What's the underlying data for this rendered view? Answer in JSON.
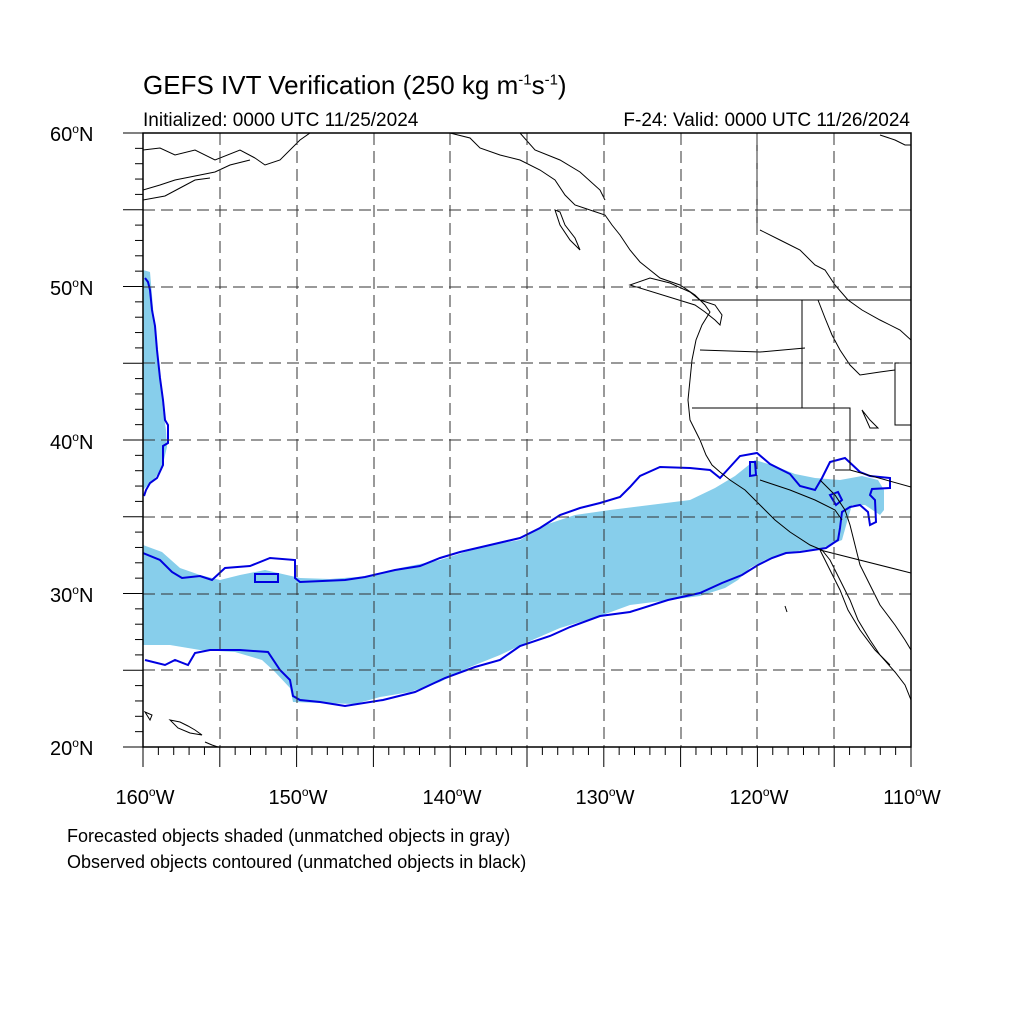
{
  "title": {
    "text": "GEFS IVT Verification (250 kg m",
    "exp1": "-1",
    "mid": "s",
    "exp2": "-1",
    "close": ")"
  },
  "subtitle_left": "Initialized: 0000 UTC 11/25/2024",
  "subtitle_right": "F-24: Valid: 0000 UTC 11/26/2024",
  "lat_labels": [
    "60",
    "50",
    "40",
    "30",
    "20"
  ],
  "lat_suffix": "N",
  "lon_labels": [
    "160",
    "150",
    "140",
    "130",
    "120",
    "110"
  ],
  "lon_suffix": "W",
  "deg_mark": "o",
  "notes": {
    "line1": "Forecasted objects shaded (unmatched objects in gray)",
    "line2": "Observed objects contoured (unmatched objects in black)"
  },
  "colors": {
    "forecast_fill": "#87CEEB",
    "observed_contour": "#0000E0",
    "coastline": "#000000",
    "grid": "#333333"
  },
  "map_extent": {
    "lon_min": -160,
    "lon_max": -110,
    "lat_min": 20,
    "lat_max": 60
  }
}
